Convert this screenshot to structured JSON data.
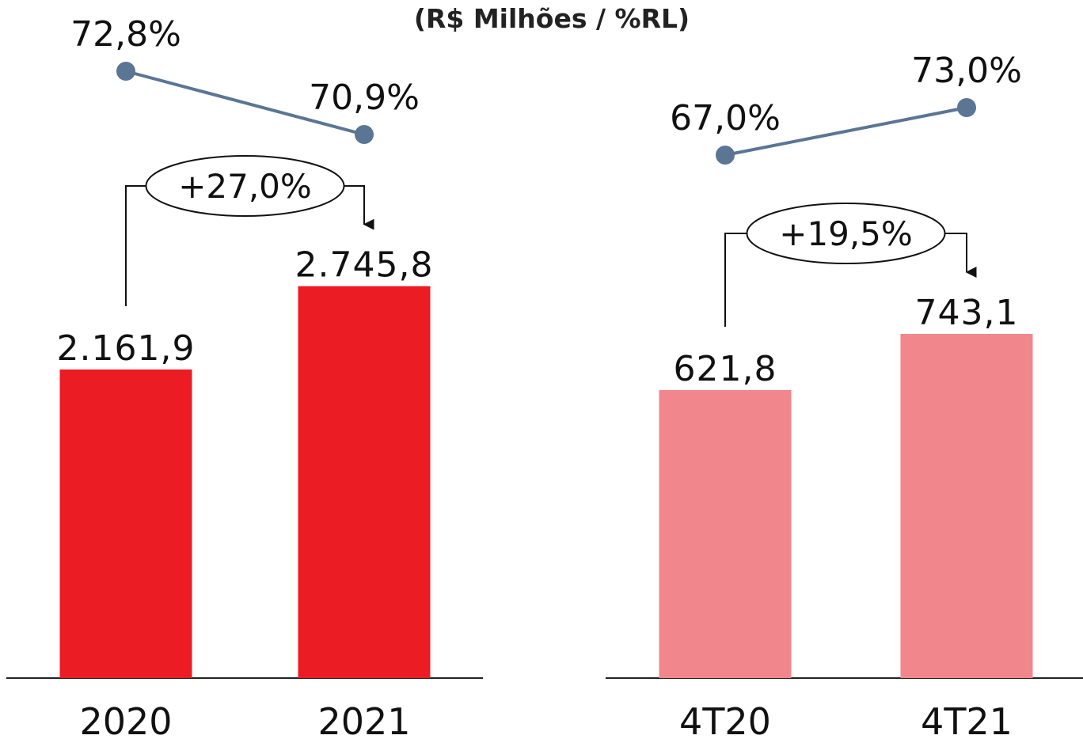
{
  "subtitle": "(R$ Milhões / %RL)",
  "colors": {
    "bar_annual": "#ec1c24",
    "bar_quarter": "#f2868d",
    "margin_line": "#5b7594",
    "axis": "#222222",
    "text": "#111111"
  },
  "chart_data": [
    {
      "type": "bar",
      "categories": [
        "2020",
        "2021"
      ],
      "values": [
        2161.9,
        2745.8
      ],
      "value_labels": [
        "2.161,9",
        "2.745,8"
      ],
      "line_series": {
        "values": [
          72.8,
          70.9
        ],
        "labels": [
          "72,8%",
          "70,9%"
        ]
      },
      "growth_label": "+27,0%",
      "bar_color": "#ec1c24"
    },
    {
      "type": "bar",
      "categories": [
        "4T20",
        "4T21"
      ],
      "values": [
        621.8,
        743.1
      ],
      "value_labels": [
        "621,8",
        "743,1"
      ],
      "line_series": {
        "values": [
          67.0,
          73.0
        ],
        "labels": [
          "67,0%",
          "73,0%"
        ]
      },
      "growth_label": "+19,5%",
      "bar_color": "#f2868d"
    }
  ]
}
